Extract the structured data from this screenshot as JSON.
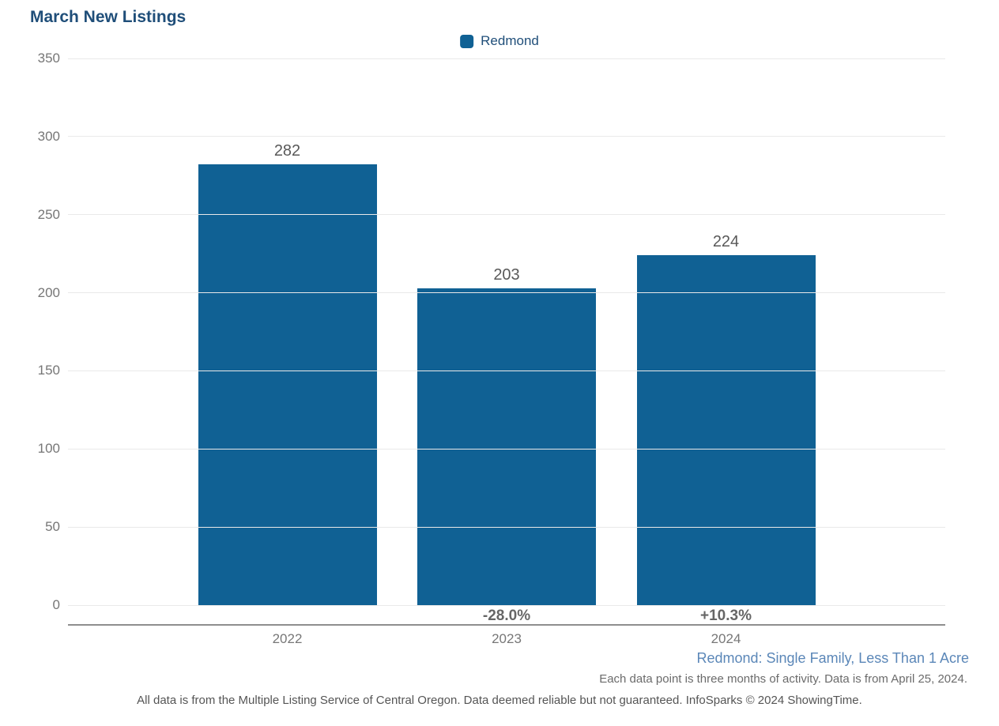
{
  "title": "March New Listings",
  "legend": {
    "label": "Redmond",
    "swatch_color": "#106194"
  },
  "chart_data": {
    "type": "bar",
    "title": "March New Listings",
    "series_name": "Redmond",
    "categories": [
      "2022",
      "2023",
      "2024"
    ],
    "values": [
      282,
      203,
      224
    ],
    "value_labels": [
      "282",
      "203",
      "224"
    ],
    "pct_change_labels": [
      "",
      "-28.0%",
      "+10.3%"
    ],
    "xlabel": "",
    "ylabel": "",
    "ylim": [
      0,
      350
    ],
    "ytick_interval": 50,
    "yticks": [
      350,
      300,
      250,
      200,
      150,
      100,
      50,
      0
    ],
    "grid": true,
    "legend_position": "top-center",
    "bar_color": "#106194"
  },
  "notes": {
    "segment": "Redmond: Single Family, Less Than 1 Acre",
    "data_note": "Each data point is three months of activity. Data is from April 25, 2024.",
    "disclaimer": "All data is from the Multiple Listing Service of Central Oregon. Data deemed reliable but not guaranteed. InfoSparks © 2024 ShowingTime."
  }
}
